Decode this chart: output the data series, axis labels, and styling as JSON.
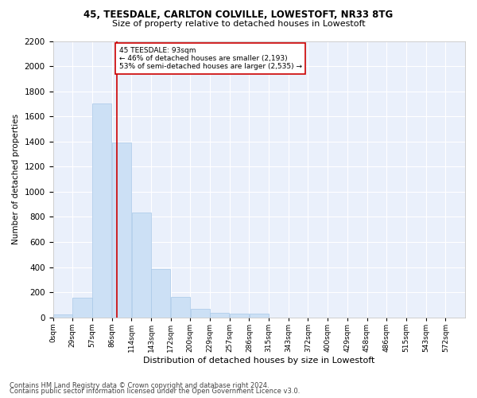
{
  "title1": "45, TEESDALE, CARLTON COLVILLE, LOWESTOFT, NR33 8TG",
  "title2": "Size of property relative to detached houses in Lowestoft",
  "xlabel": "Distribution of detached houses by size in Lowestoft",
  "ylabel": "Number of detached properties",
  "bar_color": "#cce0f5",
  "bar_edge_color": "#a8c8e8",
  "background_color": "#eaf0fb",
  "grid_color": "#ffffff",
  "bin_labels": [
    "0sqm",
    "29sqm",
    "57sqm",
    "86sqm",
    "114sqm",
    "143sqm",
    "172sqm",
    "200sqm",
    "229sqm",
    "257sqm",
    "286sqm",
    "315sqm",
    "343sqm",
    "372sqm",
    "400sqm",
    "429sqm",
    "458sqm",
    "486sqm",
    "515sqm",
    "543sqm",
    "572sqm"
  ],
  "bar_heights": [
    20,
    155,
    1700,
    1390,
    835,
    385,
    165,
    65,
    38,
    28,
    28,
    0,
    0,
    0,
    0,
    0,
    0,
    0,
    0,
    0,
    0
  ],
  "ylim": [
    0,
    2200
  ],
  "yticks": [
    0,
    200,
    400,
    600,
    800,
    1000,
    1200,
    1400,
    1600,
    1800,
    2000,
    2200
  ],
  "bin_width": 28.5,
  "property_sqm": 93,
  "annotation_line1": "45 TEESDALE: 93sqm",
  "annotation_line2": "← 46% of detached houses are smaller (2,193)",
  "annotation_line3": "53% of semi-detached houses are larger (2,535) →",
  "annotation_box_color": "#ffffff",
  "annotation_border_color": "#cc0000",
  "vline_color": "#cc0000",
  "footer1": "Contains HM Land Registry data © Crown copyright and database right 2024.",
  "footer2": "Contains public sector information licensed under the Open Government Licence v3.0."
}
